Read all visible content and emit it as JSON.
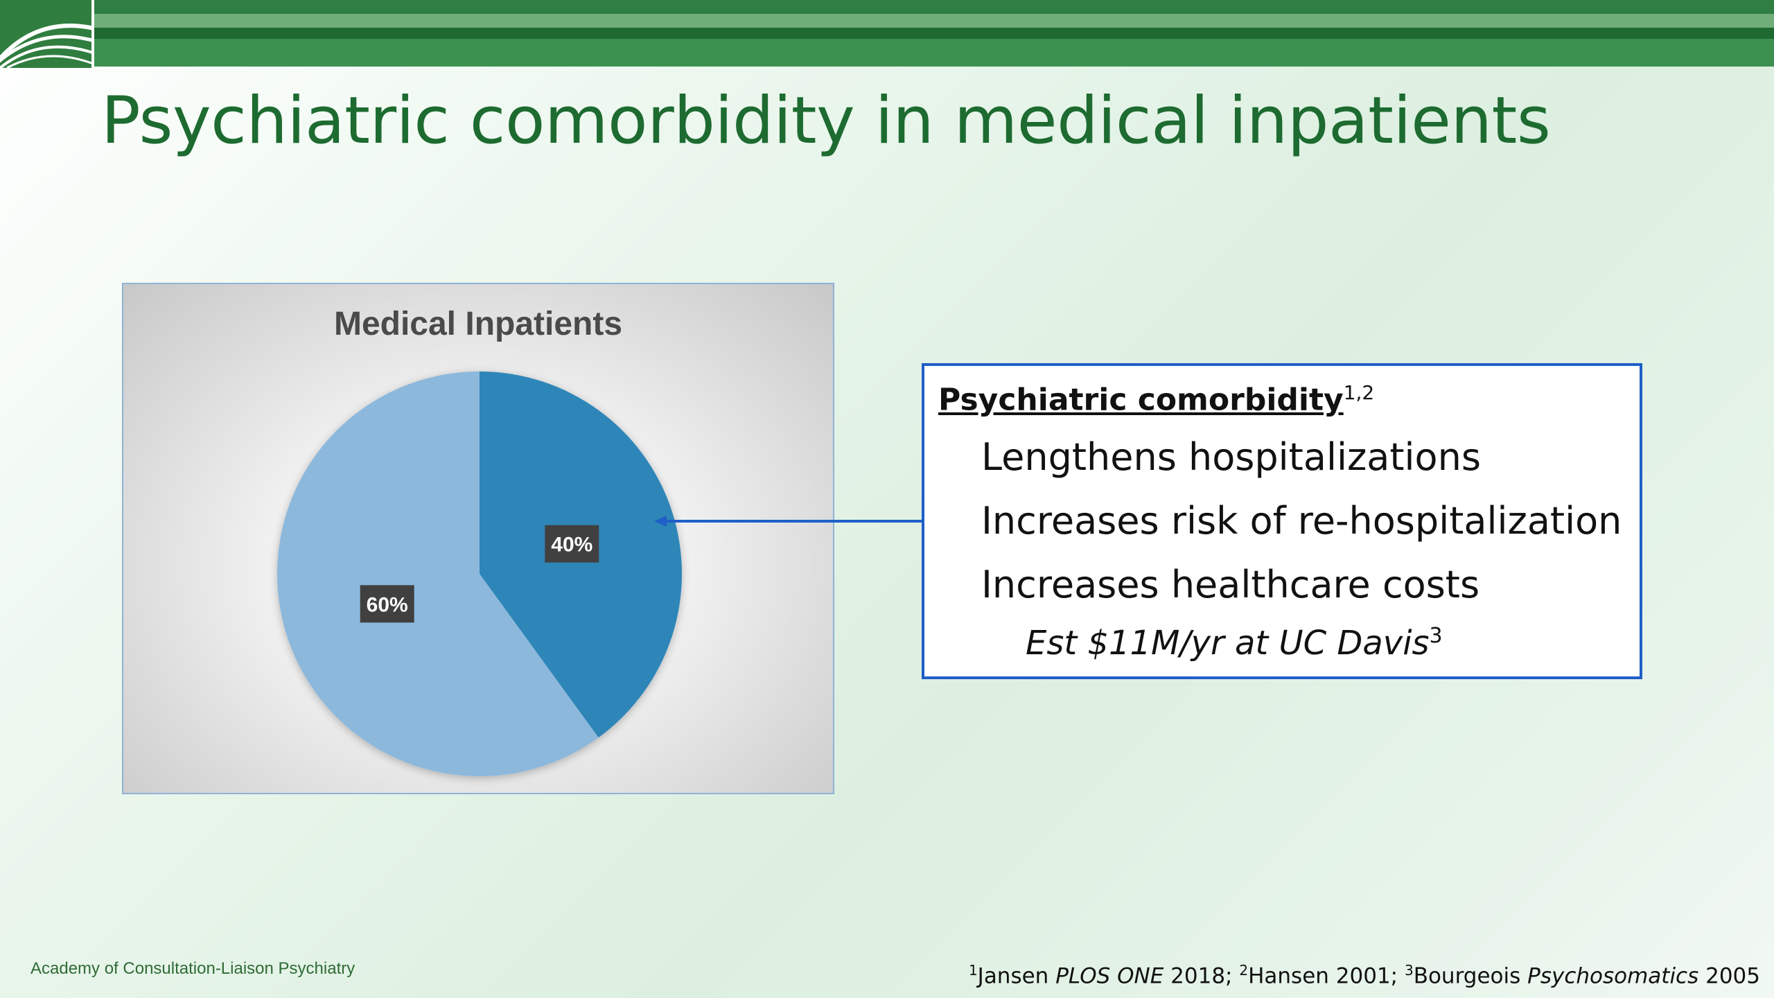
{
  "slide": {
    "title": "Psychiatric comorbidity in medical inpatients",
    "colors": {
      "title": "#1d6b30",
      "header_bar": "#2f7e42",
      "callout_border": "#1f5fc8"
    }
  },
  "logo": {
    "icon": "arc-lines-logo"
  },
  "chart_data": {
    "type": "pie",
    "title": "Medical Inpatients",
    "slices": [
      {
        "label": "40%",
        "value": 40,
        "color": "#2e86b8"
      },
      {
        "label": "60%",
        "value": 60,
        "color": "#8cb8dc"
      }
    ],
    "start_angle_deg": 0,
    "direction": "clockwise",
    "legend": "none"
  },
  "callout": {
    "heading": "Psychiatric comorbidity",
    "heading_refs": "1,2",
    "points": [
      "Lengthens hospitalizations",
      "Increases risk of re-hospitalization",
      "Increases healthcare costs"
    ],
    "sub_point": "Est $11M/yr at UC Davis",
    "sub_point_ref": "3"
  },
  "footer": {
    "organization": "Academy of Consultation-Liaison Psychiatry",
    "refs": [
      {
        "num": "1",
        "author": "Jansen ",
        "journal": "PLOS ONE",
        "year": " 2018; "
      },
      {
        "num": "2",
        "author": "Hansen 2001; ",
        "journal": "",
        "year": ""
      },
      {
        "num": "3",
        "author": "Bourgeois ",
        "journal": "Psychosomatics",
        "year": " 2005"
      }
    ]
  }
}
